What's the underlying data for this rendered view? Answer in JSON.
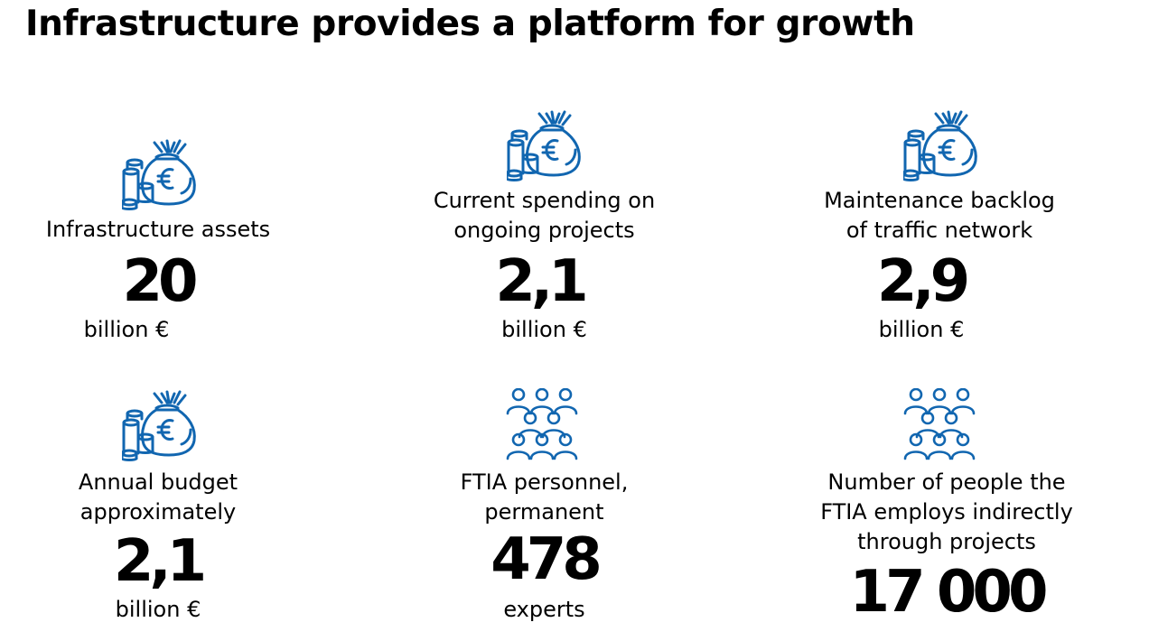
{
  "title": "Infrastructure provides a platform for growth",
  "accent_color": "#1166b0",
  "stats": [
    {
      "icon": "money-bag-coins-icon",
      "label": "Infrastructure assets",
      "value": "20",
      "unit": "billion €"
    },
    {
      "icon": "money-bag-coins-icon",
      "label": "Current spending on\nongoing projects",
      "value": "2,1",
      "unit": "billion €"
    },
    {
      "icon": "money-bag-coins-icon",
      "label": "Maintenance backlog\nof traffic network",
      "value": "2,9",
      "unit": "billion €"
    },
    {
      "icon": "money-bag-coins-icon",
      "label": "Annual budget\napproximately",
      "value": "2,1",
      "unit": "billion €"
    },
    {
      "icon": "people-group-icon",
      "label": "FTIA personnel,\n  permanent",
      "value": "478",
      "unit": "experts"
    },
    {
      "icon": "people-group-icon",
      "label": "Number of people the\n FTIA employs indirectly\n through projects",
      "value": "17 000",
      "unit": ""
    }
  ]
}
